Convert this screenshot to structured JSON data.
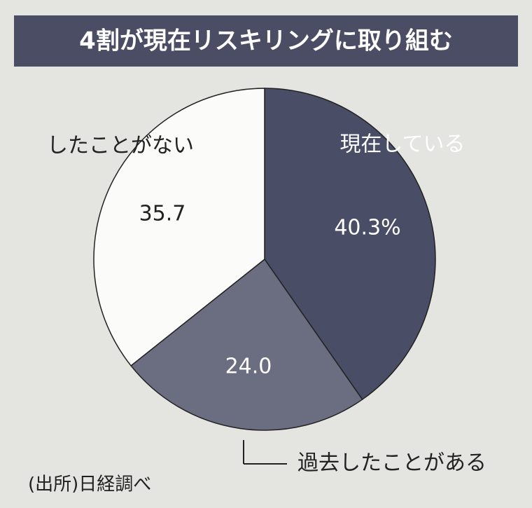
{
  "chart_data": {
    "type": "pie",
    "title": "4割が現在リスキリングに取り組む",
    "categories": [
      "現在している",
      "過去したことがある",
      "したことがない"
    ],
    "values": [
      40.3,
      24.0,
      35.7
    ],
    "value_labels": [
      "40.3%",
      "24.0",
      "35.7"
    ],
    "colors": [
      "#4a4d66",
      "#6b6d80",
      "#fbfbfa"
    ],
    "source": "(出所)日経調べ"
  }
}
